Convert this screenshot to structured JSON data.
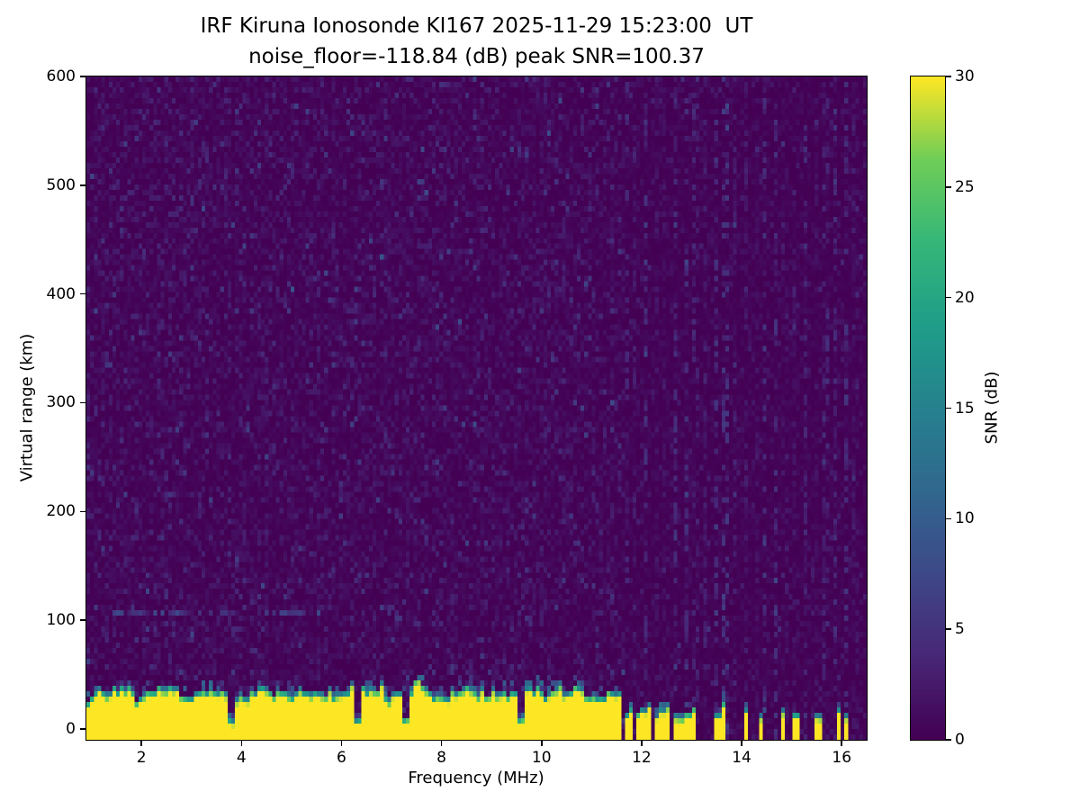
{
  "title": {
    "line1": "IRF Kiruna Ionosonde KI167 2025-11-29 15:23:00  UT",
    "line2": "noise_floor=-118.84 (dB) peak SNR=100.37"
  },
  "axes": {
    "xlabel": "Frequency (MHz)",
    "ylabel": "Virtual range (km)",
    "x_ticks": [
      2,
      4,
      6,
      8,
      10,
      12,
      14,
      16
    ],
    "y_ticks": [
      0,
      100,
      200,
      300,
      400,
      500,
      600
    ]
  },
  "colorbar": {
    "label": "SNR (dB)",
    "ticks": [
      0,
      5,
      10,
      15,
      20,
      25,
      30
    ],
    "min": 0,
    "max": 30,
    "colormap": "viridis"
  },
  "chart_data": {
    "type": "heatmap",
    "title": "IRF Kiruna Ionosonde KI167 2025-11-29 15:23:00  UT",
    "subtitle": "noise_floor=-118.84 (dB) peak SNR=100.37",
    "xlabel": "Frequency (MHz)",
    "ylabel": "Virtual range (km)",
    "zlabel": "SNR (dB)",
    "colormap": "viridis",
    "x_range_mhz": [
      0.9,
      16.5
    ],
    "y_range_km": [
      -10,
      600
    ],
    "value_range_db": [
      0,
      30
    ],
    "noise_floor_db": -118.84,
    "peak_snr_db": 100.37,
    "background_value_db": 0,
    "noise_mean_db": 1.1,
    "ground_echo": {
      "band_freq_mhz": [
        0.93,
        11.62
      ],
      "band_top_km_min": 25,
      "band_top_km_max": 42,
      "value_db": 30,
      "notch_freqs_mhz": [
        3.78,
        6.32,
        7.3,
        9.58
      ],
      "pulse_freqs_mhz": [
        11.68,
        11.8,
        11.92,
        12.04,
        12.16,
        12.28,
        12.42,
        12.55,
        12.68,
        12.82,
        12.95,
        13.05,
        13.5,
        13.63,
        14.07,
        14.38,
        14.85,
        15.08,
        15.5,
        15.95,
        16.1
      ],
      "pulse_top_km_min": 12,
      "pulse_top_km_max": 26
    },
    "e_region_trace": {
      "freq_mhz": [
        1.45,
        5.6
      ],
      "range_km": 105,
      "value_db": 7
    },
    "rfi": {
      "single_columns_mhz": [
        4.52,
        7.3
      ],
      "band_start_mhz": 11.68,
      "band_end_mhz": 16.45,
      "band_spacing_mhz": 0.2,
      "max_boost_db": 4
    }
  }
}
